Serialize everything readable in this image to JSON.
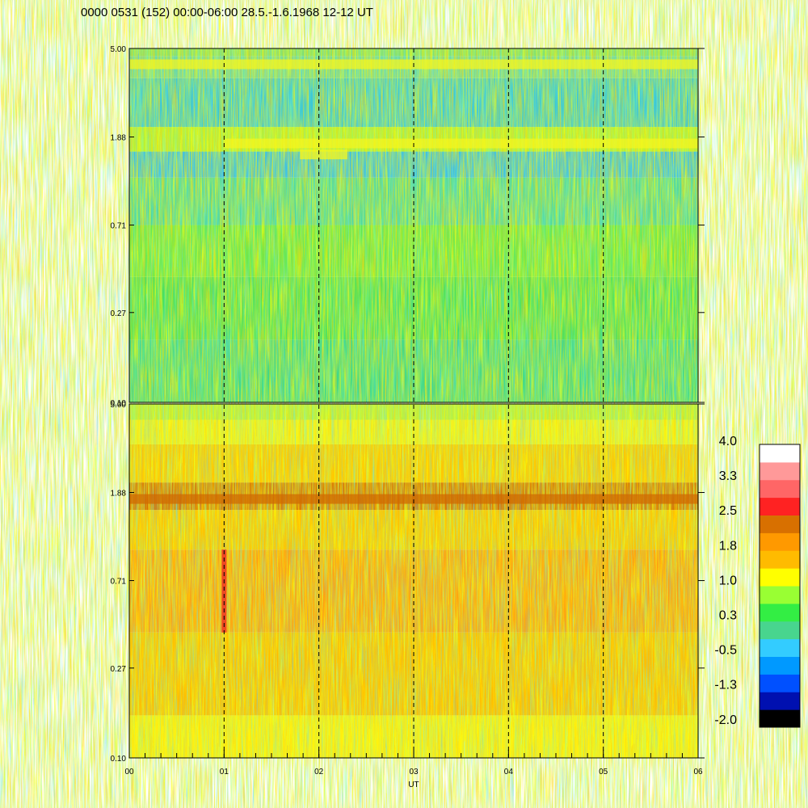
{
  "chart_data": {
    "type": "heatmap",
    "title": "0000 0531 (152) 00:00-06:00 28.5.-1.6.1968  12-12 UT",
    "xlabel": "UT",
    "x_ticks": [
      "00",
      "01",
      "02",
      "03",
      "04",
      "05",
      "06"
    ],
    "y_ticks": [
      "5.00",
      "1.88",
      "0.71",
      "0.27",
      "0.10"
    ],
    "y_scale": "log",
    "x_range_hours": [
      0,
      6
    ],
    "y_range": [
      0.1,
      5.0
    ],
    "dashed_lines_at_hours": [
      1,
      2,
      3,
      4,
      5
    ],
    "panels": [
      {
        "name": "upper",
        "y_ticks": [
          "5.00",
          "1.88",
          "0.71",
          "0.27",
          "0.10"
        ],
        "dominant_level_range": [
          -1.3,
          1.0
        ],
        "features": [
          {
            "kind": "band",
            "y": 4.2,
            "level": 1.0
          },
          {
            "kind": "band",
            "y": 1.75,
            "level": 1.0,
            "x_range": [
              1.0,
              6.0
            ]
          },
          {
            "kind": "band",
            "y": 1.55,
            "level": 1.0,
            "x_range": [
              1.8,
              2.3
            ]
          }
        ]
      },
      {
        "name": "lower",
        "y_ticks": [
          "5.00",
          "1.88",
          "0.71",
          "0.27",
          "0.10"
        ],
        "dominant_level_range": [
          1.0,
          2.5
        ],
        "features": [
          {
            "kind": "band",
            "y": 1.75,
            "level": 2.2
          },
          {
            "kind": "spike",
            "x": 1.0,
            "y_range": [
              0.4,
              1.0
            ],
            "level": 2.8
          }
        ]
      }
    ],
    "colorbar": {
      "labels": [
        "4.0",
        "3.3",
        "2.5",
        "1.8",
        "1.0",
        "0.3",
        "-0.5",
        "-1.3",
        "-2.0"
      ],
      "colors": [
        "#000000",
        "#0010b0",
        "#0050ff",
        "#0099ff",
        "#33ccff",
        "#48d58e",
        "#33ee44",
        "#99ff33",
        "#ffff00",
        "#ffbb00",
        "#ff9900",
        "#d87000",
        "#ff2222",
        "#ff6666",
        "#ff9999",
        "#ffffff"
      ]
    }
  }
}
